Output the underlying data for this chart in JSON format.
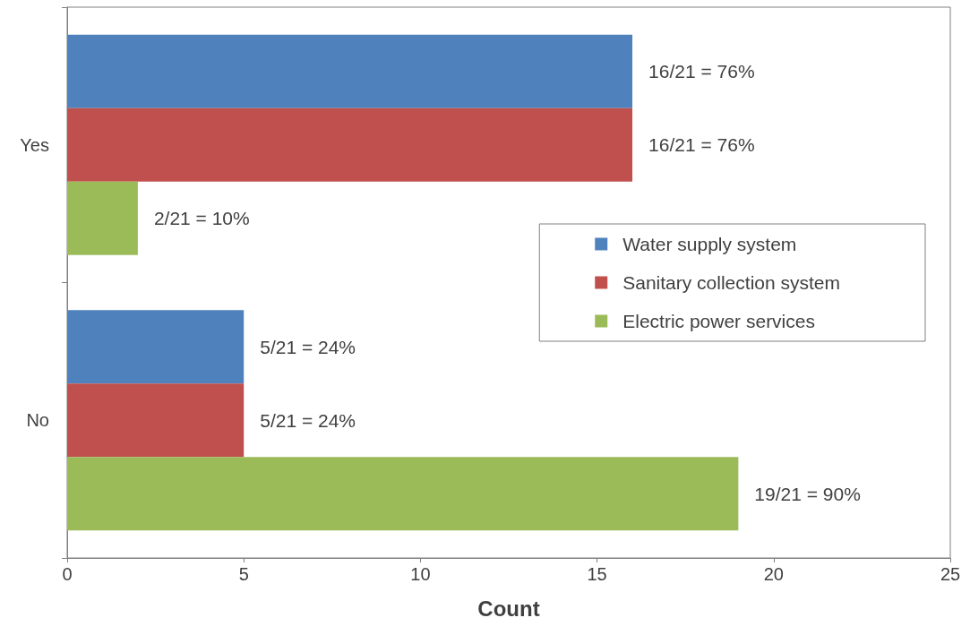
{
  "chart_data": {
    "type": "bar",
    "orientation": "horizontal",
    "xlabel": "Count",
    "categories": [
      "Yes",
      "No"
    ],
    "series": [
      {
        "name": "Water supply system",
        "color": "#4f81bd",
        "values": [
          16,
          5
        ],
        "value_labels": [
          "16/21 = 76%",
          "5/21 = 24%"
        ]
      },
      {
        "name": "Sanitary collection system",
        "color": "#c0504d",
        "values": [
          16,
          5
        ],
        "value_labels": [
          "16/21 = 76%",
          "5/21 = 24%"
        ]
      },
      {
        "name": "Electric power services",
        "color": "#9bbb59",
        "values": [
          2,
          19
        ],
        "value_labels": [
          "2/21 = 10%",
          "19/21 = 90%"
        ]
      }
    ],
    "xlim": [
      0,
      25
    ],
    "xticks": [
      0,
      5,
      10,
      15,
      20,
      25
    ],
    "grid": false,
    "legend": "right"
  }
}
